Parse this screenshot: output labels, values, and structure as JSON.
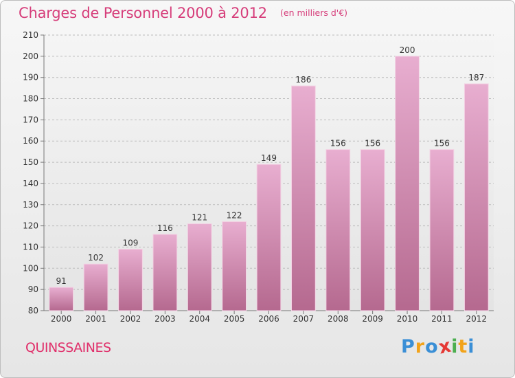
{
  "header": {
    "title": "Charges de Personnel 2000 à 2012",
    "subtitle": "(en milliers d'€)"
  },
  "commune": "QUINSSAINES",
  "logo": {
    "text": "Proxiti",
    "colors": [
      "#3a8fd6",
      "#f2a31a",
      "#3a8fd6",
      "#e53935",
      "#4caf50",
      "#f2a31a",
      "#3a8fd6"
    ]
  },
  "chart_data": {
    "type": "bar",
    "categories": [
      "2000",
      "2001",
      "2002",
      "2003",
      "2004",
      "2005",
      "2006",
      "2007",
      "2008",
      "2009",
      "2010",
      "2011",
      "2012"
    ],
    "values": [
      91,
      102,
      109,
      116,
      121,
      122,
      149,
      186,
      156,
      156,
      200,
      156,
      187
    ],
    "data_labels": [
      "91",
      "102",
      "109",
      "116",
      "121",
      "122",
      "149",
      "186",
      "156",
      "156",
      "200",
      "156",
      "187"
    ],
    "ylim": [
      80,
      210
    ],
    "yticks": [
      80,
      90,
      100,
      110,
      120,
      130,
      140,
      150,
      160,
      170,
      180,
      190,
      200,
      210
    ],
    "grid": "horizontal dashed",
    "bar_color": "#d98bb6",
    "bar_color_dark": "#b5608f"
  }
}
